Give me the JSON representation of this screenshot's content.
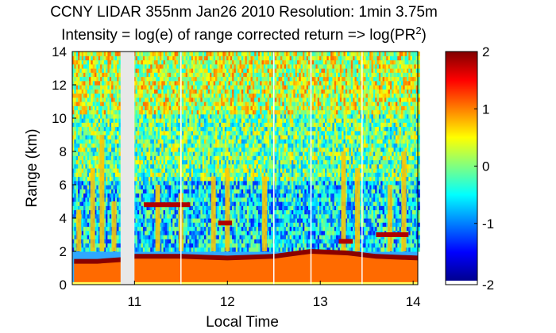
{
  "chart_data": {
    "type": "heatmap",
    "title": "CCNY LIDAR 355nm Jan26 2010 Resolution: 1min 3.75m",
    "subtitle_prefix": "Intensity = log(e) of range corrected return => log(PR",
    "subtitle_sup": "2",
    "subtitle_suffix": ")",
    "xlabel": "Local Time",
    "ylabel": "Range (km)",
    "xlim": [
      10.33,
      14.05
    ],
    "ylim": [
      0,
      14
    ],
    "xticks": [
      "11",
      "12",
      "13",
      "14"
    ],
    "yticks": [
      "0",
      "2",
      "4",
      "6",
      "8",
      "10",
      "12",
      "14"
    ],
    "colorbar": {
      "min": -2,
      "max": 2,
      "ticks": [
        "-2",
        "-1",
        "0",
        "1",
        "2"
      ],
      "colormap": "jet"
    },
    "data_gap": {
      "x_start": 10.85,
      "x_end": 11.0
    },
    "boundary_layer_top_km": [
      {
        "time": 10.35,
        "range": 1.4
      },
      {
        "time": 10.6,
        "range": 1.4
      },
      {
        "time": 10.85,
        "range": 1.5
      },
      {
        "time": 11.0,
        "range": 1.7
      },
      {
        "time": 11.5,
        "range": 1.7
      },
      {
        "time": 12.0,
        "range": 1.6
      },
      {
        "time": 12.5,
        "range": 1.7
      },
      {
        "time": 12.9,
        "range": 2.0
      },
      {
        "time": 13.3,
        "range": 1.9
      },
      {
        "time": 13.6,
        "range": 1.7
      },
      {
        "time": 14.05,
        "range": 1.6
      }
    ],
    "vertical_plumes": [
      {
        "time": 10.4,
        "top_km": 4.5
      },
      {
        "time": 10.55,
        "top_km": 7.0
      },
      {
        "time": 10.65,
        "top_km": 9.0
      },
      {
        "time": 10.78,
        "top_km": 5.0
      },
      {
        "time": 11.25,
        "top_km": 6.0
      },
      {
        "time": 11.5,
        "top_km": 5.5
      },
      {
        "time": 11.85,
        "top_km": 6.5
      },
      {
        "time": 12.0,
        "top_km": 7.0
      },
      {
        "time": 12.4,
        "top_km": 6.5
      },
      {
        "time": 13.25,
        "top_km": 8.0
      },
      {
        "time": 13.4,
        "top_km": 7.0
      },
      {
        "time": 13.75,
        "top_km": 6.0
      },
      {
        "time": 13.9,
        "top_km": 8.0
      }
    ],
    "aerosol_layers": [
      {
        "time_start": 11.1,
        "time_end": 11.6,
        "range": 4.8
      },
      {
        "time_start": 11.9,
        "time_end": 12.05,
        "range": 3.7
      },
      {
        "time_start": 13.2,
        "time_end": 13.35,
        "range": 2.6
      },
      {
        "time_start": 13.6,
        "time_end": 13.95,
        "range": 3.0
      }
    ]
  }
}
